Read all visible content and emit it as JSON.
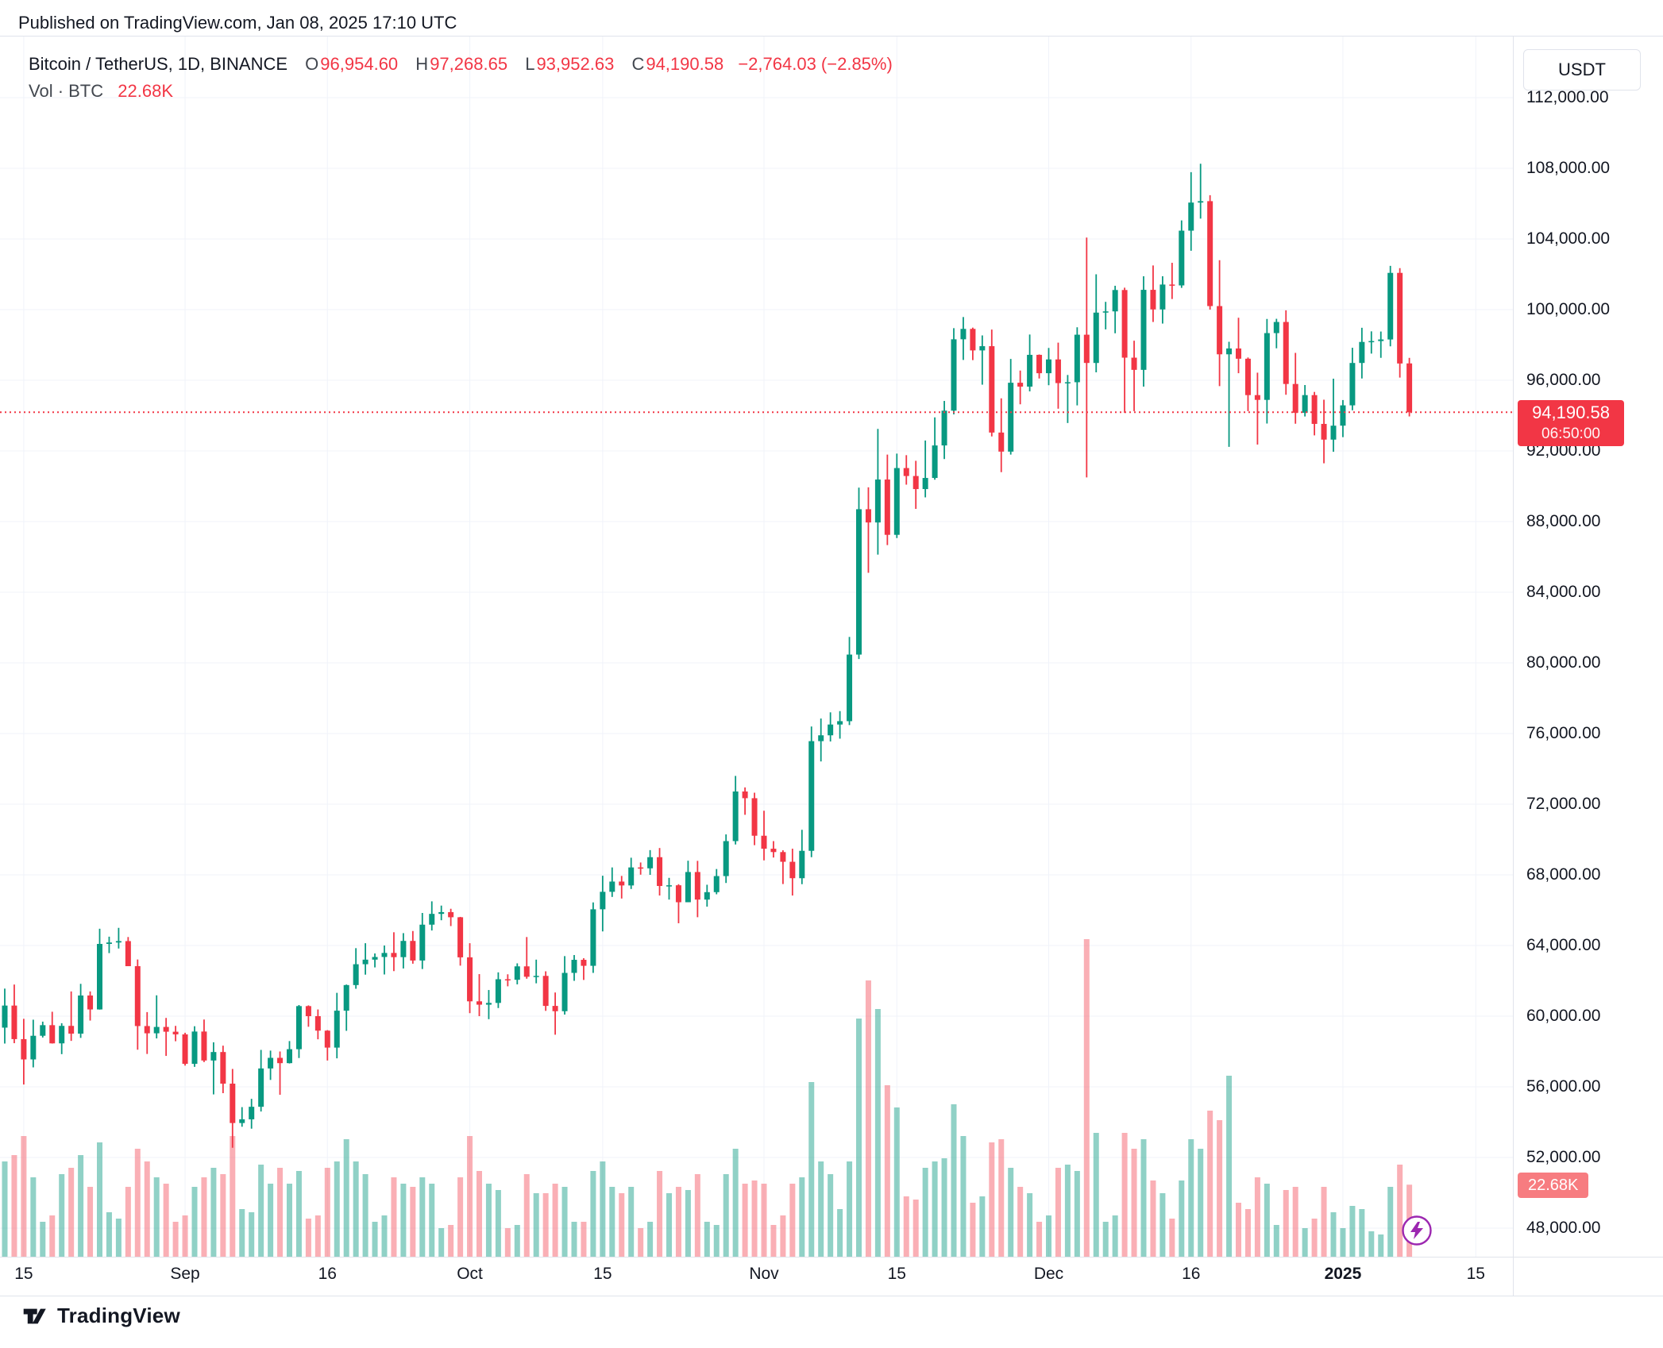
{
  "header": {
    "published": "Published on TradingView.com, Jan 08, 2025 17:10 UTC"
  },
  "legend": {
    "symbol": "Bitcoin / TetherUS, 1D, BINANCE",
    "ohlc": [
      {
        "label": "O",
        "value": "96,954.60"
      },
      {
        "label": "H",
        "value": "97,268.65"
      },
      {
        "label": "L",
        "value": "93,952.63"
      },
      {
        "label": "C",
        "value": "94,190.58"
      }
    ],
    "change": "−2,764.03 (−2.85%)",
    "vol_label": "Vol · BTC",
    "vol_value": "22.68K"
  },
  "price_axis": {
    "unit": "USDT",
    "last_price": "94,190.58",
    "countdown": "06:50:00",
    "volume_label": "22.68K",
    "ticks": [
      {
        "v": 112000,
        "t": "112,000.00"
      },
      {
        "v": 108000,
        "t": "108,000.00"
      },
      {
        "v": 104000,
        "t": "104,000.00"
      },
      {
        "v": 100000,
        "t": "100,000.00"
      },
      {
        "v": 96000,
        "t": "96,000.00"
      },
      {
        "v": 92000,
        "t": "92,000.00"
      },
      {
        "v": 88000,
        "t": "88,000.00"
      },
      {
        "v": 84000,
        "t": "84,000.00"
      },
      {
        "v": 80000,
        "t": "80,000.00"
      },
      {
        "v": 76000,
        "t": "76,000.00"
      },
      {
        "v": 72000,
        "t": "72,000.00"
      },
      {
        "v": 68000,
        "t": "68,000.00"
      },
      {
        "v": 64000,
        "t": "64,000.00"
      },
      {
        "v": 60000,
        "t": "60,000.00"
      },
      {
        "v": 56000,
        "t": "56,000.00"
      },
      {
        "v": 52000,
        "t": "52,000.00"
      },
      {
        "v": 48000,
        "t": "48,000.00"
      }
    ]
  },
  "time_axis": {
    "ticks": [
      {
        "d": 2,
        "label": "15",
        "bold": false
      },
      {
        "d": 19,
        "label": "Sep",
        "bold": false
      },
      {
        "d": 34,
        "label": "16",
        "bold": false
      },
      {
        "d": 49,
        "label": "Oct",
        "bold": false
      },
      {
        "d": 63,
        "label": "15",
        "bold": false
      },
      {
        "d": 80,
        "label": "Nov",
        "bold": false
      },
      {
        "d": 94,
        "label": "15",
        "bold": false
      },
      {
        "d": 110,
        "label": "Dec",
        "bold": false
      },
      {
        "d": 125,
        "label": "16",
        "bold": false
      },
      {
        "d": 141,
        "label": "2025",
        "bold": true
      },
      {
        "d": 155,
        "label": "15",
        "bold": false
      }
    ]
  },
  "footer": {
    "brand": "TradingView"
  },
  "colors": {
    "up": "#089981",
    "down": "#f23645",
    "vol_up": "rgba(8,153,129,0.45)",
    "vol_down": "rgba(242,54,69,0.40)",
    "grid": "#f0f3fa",
    "border": "#e0e3eb",
    "axis_text": "#131722",
    "price_badge": "#f23645",
    "volume_badge": "#f77c80",
    "flash_purple": "#9c27b0"
  },
  "chart_data": {
    "type": "candlestick",
    "title": "Bitcoin / TetherUS, 1D, BINANCE",
    "ylabel": "Price (USDT)",
    "volume_unit": "K BTC",
    "price_line": 94190.58,
    "y_axis_range": [
      46400,
      115500
    ],
    "grid": true,
    "columns": [
      "date",
      "open",
      "high",
      "low",
      "close",
      "volume_k_btc"
    ],
    "candles": [
      [
        "2024-08-13",
        59350,
        61560,
        58450,
        60600,
        30
      ],
      [
        "2024-08-14",
        60600,
        61790,
        58470,
        58700,
        32
      ],
      [
        "2024-08-15",
        58700,
        59850,
        56130,
        57550,
        38
      ],
      [
        "2024-08-16",
        57550,
        59800,
        57100,
        58890,
        25
      ],
      [
        "2024-08-17",
        58890,
        59690,
        58790,
        59490,
        11
      ],
      [
        "2024-08-18",
        59490,
        60250,
        58450,
        58460,
        13
      ],
      [
        "2024-08-19",
        58460,
        59600,
        57850,
        59450,
        26
      ],
      [
        "2024-08-20",
        59450,
        61400,
        58600,
        59010,
        28
      ],
      [
        "2024-08-21",
        59010,
        61830,
        58770,
        61170,
        32
      ],
      [
        "2024-08-22",
        61170,
        61400,
        59750,
        60380,
        22
      ],
      [
        "2024-08-23",
        60380,
        64950,
        60370,
        64090,
        36
      ],
      [
        "2024-08-24",
        64090,
        64500,
        63570,
        64170,
        14
      ],
      [
        "2024-08-25",
        64170,
        65000,
        63830,
        64250,
        12
      ],
      [
        "2024-08-26",
        64250,
        64480,
        62850,
        62830,
        22
      ],
      [
        "2024-08-27",
        62830,
        63210,
        58100,
        59440,
        34
      ],
      [
        "2024-08-28",
        59440,
        60230,
        57860,
        59030,
        30
      ],
      [
        "2024-08-29",
        59030,
        61180,
        58740,
        59390,
        25
      ],
      [
        "2024-08-30",
        59390,
        59900,
        57750,
        59120,
        23
      ],
      [
        "2024-08-31",
        59120,
        59450,
        58580,
        58970,
        11
      ],
      [
        "2024-09-01",
        58970,
        59060,
        57200,
        57300,
        13
      ],
      [
        "2024-09-02",
        57300,
        59430,
        57130,
        59130,
        22
      ],
      [
        "2024-09-03",
        59130,
        59810,
        57400,
        57490,
        25
      ],
      [
        "2024-09-04",
        57490,
        58520,
        55570,
        57970,
        28
      ],
      [
        "2024-09-05",
        57970,
        58330,
        55640,
        56180,
        26
      ],
      [
        "2024-09-06",
        56180,
        57010,
        52550,
        53950,
        38
      ],
      [
        "2024-09-07",
        53950,
        54850,
        53740,
        54160,
        15
      ],
      [
        "2024-09-08",
        54160,
        55320,
        53630,
        54870,
        14
      ],
      [
        "2024-09-09",
        54870,
        58090,
        54600,
        57040,
        29
      ],
      [
        "2024-09-10",
        57040,
        58050,
        56390,
        57640,
        23
      ],
      [
        "2024-09-11",
        57640,
        58000,
        55550,
        57340,
        28
      ],
      [
        "2024-09-12",
        57340,
        58590,
        57320,
        58130,
        23
      ],
      [
        "2024-09-13",
        58130,
        60630,
        57630,
        60570,
        27
      ],
      [
        "2024-09-14",
        60570,
        60610,
        59400,
        60000,
        12
      ],
      [
        "2024-09-15",
        60000,
        60380,
        58690,
        59180,
        13
      ],
      [
        "2024-09-16",
        59180,
        59210,
        57490,
        58220,
        28
      ],
      [
        "2024-09-17",
        58220,
        61320,
        57610,
        60310,
        30
      ],
      [
        "2024-09-18",
        60310,
        61790,
        59170,
        61760,
        37
      ],
      [
        "2024-09-19",
        61760,
        63850,
        61550,
        62940,
        30
      ],
      [
        "2024-09-20",
        62940,
        64130,
        62350,
        63200,
        26
      ],
      [
        "2024-09-21",
        63200,
        63550,
        62760,
        63350,
        11
      ],
      [
        "2024-09-22",
        63350,
        64000,
        62360,
        63580,
        13
      ],
      [
        "2024-09-23",
        63580,
        64750,
        62550,
        63340,
        25
      ],
      [
        "2024-09-24",
        63340,
        64700,
        62700,
        64260,
        23
      ],
      [
        "2024-09-25",
        64260,
        64820,
        62970,
        63150,
        22
      ],
      [
        "2024-09-26",
        63150,
        65840,
        62670,
        65180,
        25
      ],
      [
        "2024-09-27",
        65180,
        66500,
        64850,
        65790,
        23
      ],
      [
        "2024-09-28",
        65790,
        66260,
        65430,
        65890,
        9
      ],
      [
        "2024-09-29",
        65890,
        66080,
        65100,
        65600,
        10
      ],
      [
        "2024-09-30",
        65600,
        65620,
        62860,
        63330,
        25
      ],
      [
        "2024-10-01",
        63330,
        64130,
        60170,
        60840,
        38
      ],
      [
        "2024-10-02",
        60840,
        62380,
        60000,
        60650,
        27
      ],
      [
        "2024-10-03",
        60650,
        61480,
        59830,
        60750,
        23
      ],
      [
        "2024-10-04",
        60750,
        62480,
        60460,
        62090,
        21
      ],
      [
        "2024-10-05",
        62090,
        62370,
        61690,
        62060,
        9
      ],
      [
        "2024-10-06",
        62060,
        62990,
        61800,
        62820,
        10
      ],
      [
        "2024-10-07",
        62820,
        64480,
        62120,
        62230,
        26
      ],
      [
        "2024-10-08",
        62230,
        63200,
        61860,
        62280,
        20
      ],
      [
        "2024-10-09",
        62280,
        62540,
        60300,
        60580,
        20
      ],
      [
        "2024-10-10",
        60580,
        61340,
        58950,
        60280,
        23
      ],
      [
        "2024-10-11",
        60280,
        63400,
        60090,
        62450,
        22
      ],
      [
        "2024-10-12",
        62450,
        63460,
        62000,
        63190,
        11
      ],
      [
        "2024-10-13",
        63190,
        63280,
        62050,
        62850,
        11
      ],
      [
        "2024-10-14",
        62850,
        66440,
        62450,
        66050,
        27
      ],
      [
        "2024-10-15",
        66050,
        67950,
        64800,
        67040,
        30
      ],
      [
        "2024-10-16",
        67040,
        68420,
        66750,
        67620,
        22
      ],
      [
        "2024-10-17",
        67620,
        67940,
        66660,
        67400,
        20
      ],
      [
        "2024-10-18",
        67400,
        68970,
        67200,
        68420,
        22
      ],
      [
        "2024-10-19",
        68420,
        68700,
        68010,
        68370,
        9
      ],
      [
        "2024-10-20",
        68370,
        69400,
        68000,
        69000,
        11
      ],
      [
        "2024-10-21",
        69000,
        69520,
        66830,
        67370,
        27
      ],
      [
        "2024-10-22",
        67370,
        67830,
        66600,
        67410,
        20
      ],
      [
        "2024-10-23",
        67410,
        67470,
        65260,
        66450,
        22
      ],
      [
        "2024-10-24",
        66450,
        68800,
        66450,
        68160,
        21
      ],
      [
        "2024-10-25",
        68160,
        68790,
        65600,
        66600,
        26
      ],
      [
        "2024-10-26",
        66600,
        67440,
        66200,
        67020,
        11
      ],
      [
        "2024-10-27",
        67020,
        68330,
        66900,
        67930,
        10
      ],
      [
        "2024-10-28",
        67930,
        70290,
        67540,
        69910,
        26
      ],
      [
        "2024-10-29",
        69910,
        73600,
        69720,
        72720,
        34
      ],
      [
        "2024-10-30",
        72720,
        72950,
        71400,
        72340,
        23
      ],
      [
        "2024-10-31",
        72340,
        72650,
        69680,
        70215,
        24
      ],
      [
        "2024-11-01",
        70215,
        71630,
        68820,
        69480,
        23
      ],
      [
        "2024-11-02",
        69480,
        69910,
        68980,
        69290,
        10
      ],
      [
        "2024-11-03",
        69290,
        69390,
        67480,
        68740,
        13
      ],
      [
        "2024-11-04",
        68740,
        69480,
        66830,
        67810,
        23
      ],
      [
        "2024-11-05",
        67810,
        70550,
        67470,
        69360,
        25
      ],
      [
        "2024-11-06",
        69360,
        76400,
        69000,
        75570,
        55
      ],
      [
        "2024-11-07",
        75570,
        76850,
        74420,
        75900,
        30
      ],
      [
        "2024-11-08",
        75900,
        77200,
        75550,
        76510,
        26
      ],
      [
        "2024-11-09",
        76510,
        77270,
        75710,
        76700,
        15
      ],
      [
        "2024-11-10",
        76700,
        81470,
        76480,
        80470,
        30
      ],
      [
        "2024-11-11",
        80470,
        89920,
        80220,
        88700,
        75
      ],
      [
        "2024-11-12",
        88700,
        89940,
        85100,
        87950,
        87
      ],
      [
        "2024-11-13",
        87950,
        93250,
        86130,
        90380,
        78
      ],
      [
        "2024-11-14",
        90380,
        91790,
        86670,
        87250,
        54
      ],
      [
        "2024-11-15",
        87250,
        91850,
        87070,
        91030,
        47
      ],
      [
        "2024-11-16",
        91030,
        91760,
        90090,
        90580,
        19
      ],
      [
        "2024-11-17",
        90580,
        91440,
        88720,
        89840,
        18
      ],
      [
        "2024-11-18",
        89840,
        92590,
        89370,
        90470,
        28
      ],
      [
        "2024-11-19",
        90470,
        93900,
        90370,
        92310,
        30
      ],
      [
        "2024-11-20",
        92310,
        94830,
        91540,
        94280,
        31
      ],
      [
        "2024-11-21",
        94280,
        98950,
        94070,
        98320,
        48
      ],
      [
        "2024-11-22",
        98320,
        99580,
        97150,
        98910,
        38
      ],
      [
        "2024-11-23",
        98910,
        98980,
        97140,
        97690,
        17
      ],
      [
        "2024-11-24",
        97690,
        98540,
        95750,
        97930,
        19
      ],
      [
        "2024-11-25",
        97930,
        98870,
        92820,
        93040,
        36
      ],
      [
        "2024-11-26",
        93040,
        94980,
        90800,
        91960,
        37
      ],
      [
        "2024-11-27",
        91960,
        97210,
        91790,
        95860,
        28
      ],
      [
        "2024-11-28",
        95860,
        96550,
        94640,
        95640,
        22
      ],
      [
        "2024-11-29",
        95640,
        98590,
        95370,
        97440,
        20
      ],
      [
        "2024-11-30",
        97440,
        97460,
        96100,
        96400,
        11
      ],
      [
        "2024-12-01",
        96400,
        97830,
        95720,
        97180,
        13
      ],
      [
        "2024-12-02",
        97180,
        98130,
        94390,
        95840,
        28
      ],
      [
        "2024-12-03",
        95840,
        96300,
        93580,
        95890,
        29
      ],
      [
        "2024-12-04",
        95890,
        99000,
        94580,
        98580,
        27
      ],
      [
        "2024-12-05",
        98580,
        104080,
        90500,
        96980,
        100
      ],
      [
        "2024-12-06",
        96980,
        102000,
        96450,
        99830,
        39
      ],
      [
        "2024-12-07",
        99830,
        100440,
        98880,
        99900,
        11
      ],
      [
        "2024-12-08",
        99900,
        101350,
        98660,
        101110,
        13
      ],
      [
        "2024-12-09",
        101110,
        101240,
        94150,
        97280,
        39
      ],
      [
        "2024-12-10",
        97280,
        98240,
        94250,
        96590,
        34
      ],
      [
        "2024-12-11",
        96590,
        101890,
        95640,
        101120,
        37
      ],
      [
        "2024-12-12",
        101120,
        102500,
        99300,
        100010,
        24
      ],
      [
        "2024-12-13",
        100010,
        101890,
        99210,
        101420,
        20
      ],
      [
        "2024-12-14",
        101420,
        102650,
        100600,
        101370,
        12
      ],
      [
        "2024-12-15",
        101370,
        105050,
        101230,
        104470,
        24
      ],
      [
        "2024-12-16",
        104470,
        107780,
        103330,
        106060,
        37
      ],
      [
        "2024-12-17",
        106060,
        108260,
        105150,
        106140,
        34
      ],
      [
        "2024-12-18",
        106140,
        106480,
        100000,
        100200,
        46
      ],
      [
        "2024-12-19",
        100200,
        102800,
        95670,
        97470,
        43
      ],
      [
        "2024-12-20",
        97470,
        98180,
        92230,
        97800,
        57
      ],
      [
        "2024-12-21",
        97800,
        99540,
        96400,
        97220,
        17
      ],
      [
        "2024-12-22",
        97220,
        97290,
        94250,
        95160,
        15
      ],
      [
        "2024-12-23",
        95160,
        96430,
        92360,
        94890,
        25
      ],
      [
        "2024-12-24",
        94890,
        99470,
        93550,
        98670,
        23
      ],
      [
        "2024-12-25",
        98670,
        99480,
        97810,
        99300,
        10
      ],
      [
        "2024-12-26",
        99300,
        99960,
        95180,
        95790,
        21
      ],
      [
        "2024-12-27",
        95790,
        97550,
        93540,
        94160,
        22
      ],
      [
        "2024-12-28",
        94160,
        95730,
        93950,
        95160,
        9
      ],
      [
        "2024-12-29",
        95160,
        95340,
        92880,
        93530,
        12
      ],
      [
        "2024-12-30",
        93530,
        94900,
        91300,
        92640,
        22
      ],
      [
        "2024-12-31",
        92640,
        96090,
        91950,
        93430,
        14
      ],
      [
        "2025-01-01",
        93430,
        94880,
        92780,
        94580,
        9
      ],
      [
        "2025-01-02",
        94580,
        97840,
        94300,
        96980,
        16
      ],
      [
        "2025-01-03",
        96980,
        98970,
        96100,
        98170,
        15
      ],
      [
        "2025-01-04",
        98170,
        98770,
        97510,
        98220,
        8
      ],
      [
        "2025-01-05",
        98220,
        98760,
        97270,
        98310,
        7
      ],
      [
        "2025-01-06",
        98310,
        102480,
        97920,
        102080,
        22
      ],
      [
        "2025-01-07",
        102080,
        102350,
        96150,
        96950,
        29
      ],
      [
        "2025-01-08",
        96954.6,
        97268.65,
        93952.63,
        94190.58,
        22.68
      ]
    ]
  }
}
